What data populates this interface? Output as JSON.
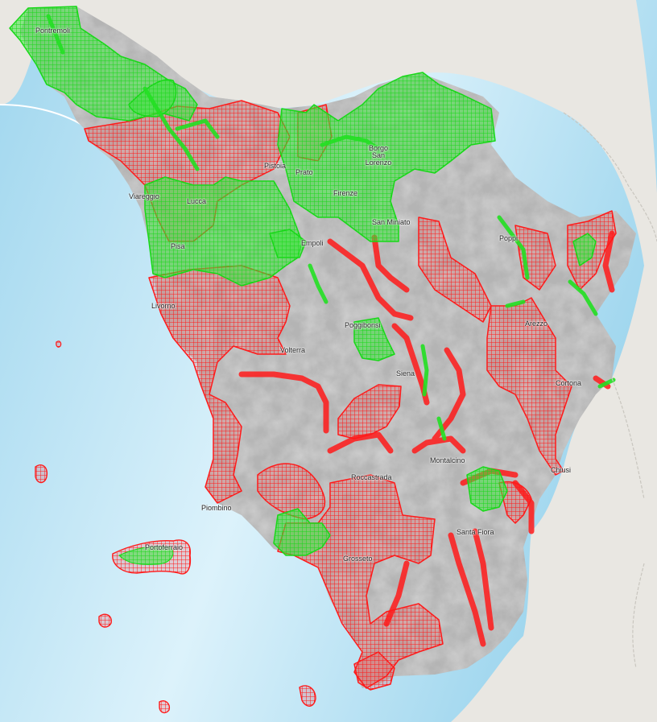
{
  "colors": {
    "sea_deep": "#9fd6ee",
    "sea_shallow": "#dcf2fb",
    "land_outside": "#e9e7e2",
    "region_relief": "#b4b4b4",
    "zone_red": "#ff1a1a",
    "zone_green": "#22e022",
    "border_line": "#c9c6bf"
  },
  "legend_semantics": {
    "red_grid_zone": "red-hatched-zone",
    "green_grid_zone": "green-hatched-zone"
  },
  "places": [
    {
      "id": "pontremoli",
      "name": "Pontremoli"
    },
    {
      "id": "viareggio",
      "name": "Viareggio"
    },
    {
      "id": "pisa",
      "name": "Pisa"
    },
    {
      "id": "livorno",
      "name": "Livorno"
    },
    {
      "id": "lucca",
      "name": "Lucca"
    },
    {
      "id": "pistoia",
      "name": "Pistoia"
    },
    {
      "id": "prato",
      "name": "Prato"
    },
    {
      "id": "firenze",
      "name": "Firenze"
    },
    {
      "id": "borgo",
      "name": "Borgo San Lorenzo"
    },
    {
      "id": "empoli",
      "name": "Empoli"
    },
    {
      "id": "poggibonsi",
      "name": "Poggibonsi"
    },
    {
      "id": "volterra",
      "name": "Volterra"
    },
    {
      "id": "siena",
      "name": "Siena"
    },
    {
      "id": "poppi",
      "name": "Poppi"
    },
    {
      "id": "arezzo",
      "name": "Arezzo"
    },
    {
      "id": "cortona",
      "name": "Cortona"
    },
    {
      "id": "montalcino",
      "name": "Montalcino"
    },
    {
      "id": "chiusi",
      "name": "Chiusi"
    },
    {
      "id": "roccastrada",
      "name": "Roccastrada"
    },
    {
      "id": "piombino",
      "name": "Piombino"
    },
    {
      "id": "portoferraio",
      "name": "Portoferraio"
    },
    {
      "id": "santafiora",
      "name": "Santa Fiora"
    },
    {
      "id": "grosseto",
      "name": "Grosseto"
    },
    {
      "id": "sanminiato",
      "name": "San Miniato"
    }
  ]
}
